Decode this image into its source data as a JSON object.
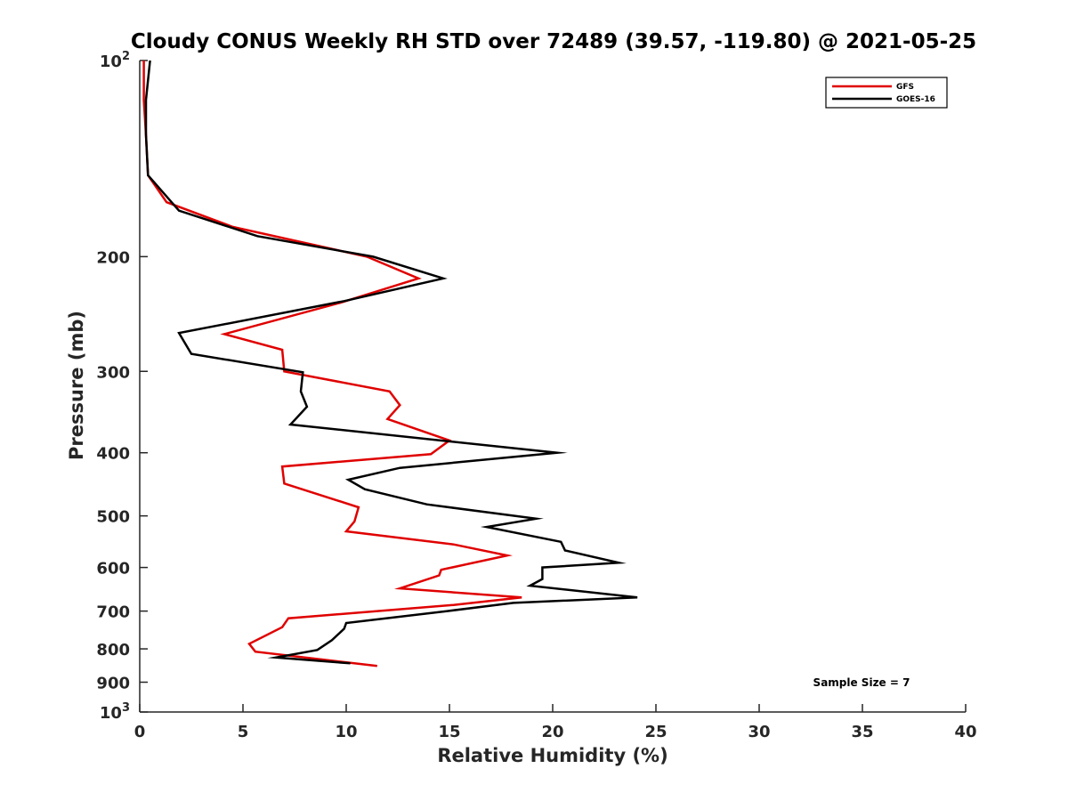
{
  "chart_data": {
    "type": "line",
    "title": "Cloudy CONUS Weekly RH STD over 72489 (39.57, -119.80) @ 2021-05-25",
    "xlabel": "Relative Humidity (%)",
    "ylabel": "Pressure (mb)",
    "xlim": [
      0,
      40
    ],
    "ylim": [
      1000,
      100
    ],
    "yscale": "log",
    "y_reversed": true,
    "xticks": [
      0,
      5,
      10,
      15,
      20,
      25,
      30,
      35,
      40
    ],
    "yticks": [
      {
        "value": 100,
        "base": "10",
        "exp": "2"
      },
      {
        "value": 200,
        "label": "200"
      },
      {
        "value": 300,
        "label": "300"
      },
      {
        "value": 400,
        "label": "400"
      },
      {
        "value": 500,
        "label": "500"
      },
      {
        "value": 600,
        "label": "600"
      },
      {
        "value": 700,
        "label": "700"
      },
      {
        "value": 800,
        "label": "800"
      },
      {
        "value": 900,
        "label": "900"
      },
      {
        "value": 1000,
        "base": "10",
        "exp": "3"
      }
    ],
    "grid": false,
    "legend_position": "top-right",
    "series": [
      {
        "name": "GFS",
        "color": "#e00000",
        "points": [
          [
            0.2,
            100
          ],
          [
            0.2,
            115
          ],
          [
            0.3,
            130
          ],
          [
            0.4,
            150
          ],
          [
            1.3,
            165
          ],
          [
            4.5,
            180
          ],
          [
            11.0,
            200
          ],
          [
            13.5,
            216
          ],
          [
            9.8,
            235
          ],
          [
            4.1,
            263
          ],
          [
            6.9,
            278
          ],
          [
            7.0,
            300
          ],
          [
            12.1,
            322
          ],
          [
            12.6,
            338
          ],
          [
            12.0,
            355
          ],
          [
            15.0,
            383
          ],
          [
            14.1,
            402
          ],
          [
            6.9,
            420
          ],
          [
            7.0,
            446
          ],
          [
            10.6,
            485
          ],
          [
            10.4,
            510
          ],
          [
            10.0,
            528
          ],
          [
            15.2,
            553
          ],
          [
            17.8,
            575
          ],
          [
            14.6,
            605
          ],
          [
            14.5,
            617
          ],
          [
            12.6,
            646
          ],
          [
            18.5,
            667
          ],
          [
            15.2,
            685
          ],
          [
            7.2,
            718
          ],
          [
            6.9,
            741
          ],
          [
            5.3,
            786
          ],
          [
            5.6,
            808
          ],
          [
            11.5,
            850
          ]
        ]
      },
      {
        "name": "GOES-16",
        "color": "#000000",
        "points": [
          [
            0.5,
            100
          ],
          [
            0.3,
            115
          ],
          [
            0.3,
            130
          ],
          [
            0.4,
            150
          ],
          [
            1.9,
            170
          ],
          [
            5.7,
            186
          ],
          [
            11.3,
            200
          ],
          [
            14.7,
            216
          ],
          [
            9.9,
            234
          ],
          [
            1.9,
            262
          ],
          [
            2.5,
            282
          ],
          [
            7.9,
            301
          ],
          [
            7.8,
            322
          ],
          [
            8.1,
            340
          ],
          [
            7.3,
            362
          ],
          [
            20.2,
            400
          ],
          [
            12.6,
            422
          ],
          [
            10.1,
            440
          ],
          [
            10.9,
            455
          ],
          [
            13.9,
            480
          ],
          [
            19.2,
            505
          ],
          [
            16.8,
            520
          ],
          [
            20.4,
            548
          ],
          [
            20.6,
            565
          ],
          [
            23.2,
            590
          ],
          [
            19.5,
            600
          ],
          [
            19.5,
            625
          ],
          [
            18.9,
            640
          ],
          [
            24.1,
            667
          ],
          [
            18.1,
            680
          ],
          [
            14.9,
            700
          ],
          [
            10.0,
            730
          ],
          [
            9.9,
            745
          ],
          [
            9.3,
            776
          ],
          [
            8.6,
            803
          ],
          [
            6.6,
            825
          ],
          [
            10.2,
            842
          ]
        ]
      }
    ],
    "annotation": "Sample Size = 7"
  }
}
